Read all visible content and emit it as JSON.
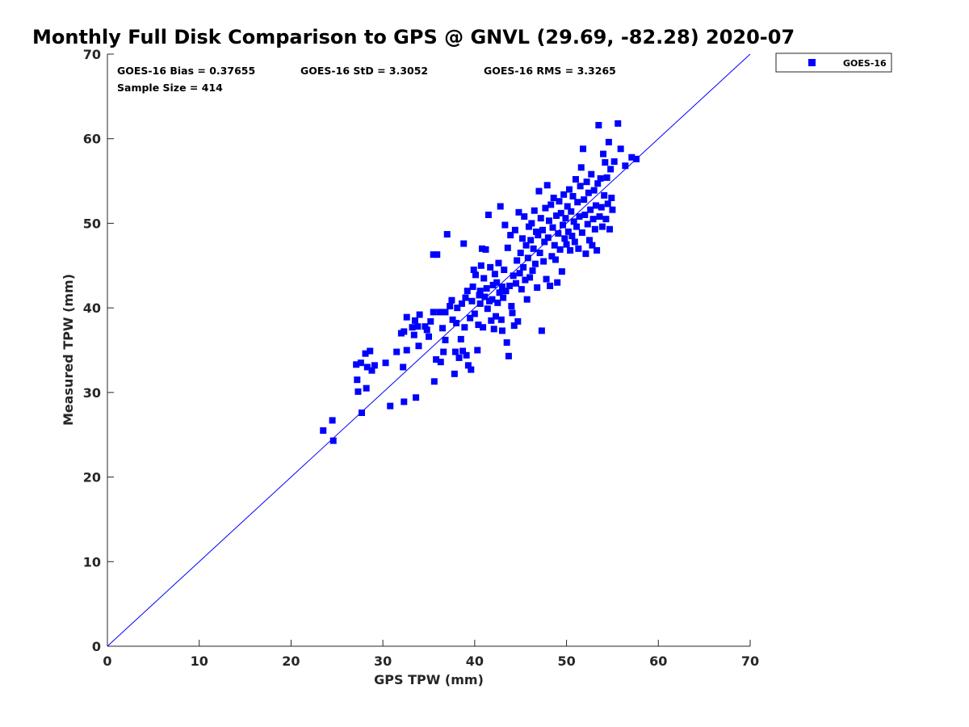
{
  "chart_data": {
    "type": "scatter",
    "title": "Monthly Full Disk Comparison to GPS @ GNVL (29.69, -82.28) 2020-07",
    "xlabel": "GPS TPW (mm)",
    "ylabel": "Measured TPW (mm)",
    "xlim": [
      0,
      70
    ],
    "ylim": [
      0,
      70
    ],
    "xticks": [
      "0",
      "10",
      "20",
      "30",
      "40",
      "50",
      "60",
      "70"
    ],
    "yticks": [
      "0",
      "10",
      "20",
      "30",
      "40",
      "50",
      "60",
      "70"
    ],
    "grid": false,
    "legend_position": "outside-top-right",
    "reference_line": {
      "from": [
        0,
        0
      ],
      "to": [
        70,
        70
      ],
      "color": "#0000ff"
    },
    "stats": {
      "bias": "GOES-16 Bias = 0.37655",
      "std": "GOES-16 StD = 3.3052",
      "rms": "GOES-16 RMS = 3.3265",
      "sample": "Sample Size = 414"
    },
    "series": [
      {
        "name": "GOES-16",
        "color": "#0000ff",
        "marker": "square",
        "points": [
          [
            23.5,
            25.5
          ],
          [
            24.5,
            26.7
          ],
          [
            24.6,
            24.3
          ],
          [
            27.7,
            27.6
          ],
          [
            27.3,
            30.1
          ],
          [
            27.2,
            31.5
          ],
          [
            27.1,
            33.3
          ],
          [
            27.6,
            33.5
          ],
          [
            28.1,
            34.6
          ],
          [
            28.6,
            34.9
          ],
          [
            28.3,
            33.0
          ],
          [
            28.8,
            32.6
          ],
          [
            29.1,
            33.2
          ],
          [
            28.2,
            30.5
          ],
          [
            30.3,
            33.5
          ],
          [
            31.5,
            34.8
          ],
          [
            30.8,
            28.4
          ],
          [
            32.3,
            28.9
          ],
          [
            33.6,
            29.4
          ],
          [
            32.2,
            33.0
          ],
          [
            32.6,
            35.0
          ],
          [
            32.0,
            37.0
          ],
          [
            32.3,
            37.2
          ],
          [
            32.6,
            38.9
          ],
          [
            33.2,
            37.7
          ],
          [
            33.4,
            36.8
          ],
          [
            33.5,
            38.5
          ],
          [
            33.8,
            37.8
          ],
          [
            33.9,
            35.5
          ],
          [
            34.0,
            39.2
          ],
          [
            34.6,
            37.8
          ],
          [
            34.8,
            37.4
          ],
          [
            35.0,
            36.6
          ],
          [
            35.2,
            38.4
          ],
          [
            35.5,
            39.5
          ],
          [
            35.5,
            46.3
          ],
          [
            35.9,
            46.3
          ],
          [
            35.8,
            33.9
          ],
          [
            35.6,
            31.3
          ],
          [
            36.2,
            39.5
          ],
          [
            36.6,
            34.8
          ],
          [
            36.8,
            36.2
          ],
          [
            36.5,
            37.6
          ],
          [
            36.3,
            33.6
          ],
          [
            36.8,
            39.5
          ],
          [
            37.0,
            48.7
          ],
          [
            37.3,
            40.2
          ],
          [
            37.5,
            40.9
          ],
          [
            37.6,
            38.6
          ],
          [
            37.8,
            32.2
          ],
          [
            37.9,
            34.8
          ],
          [
            38.0,
            38.2
          ],
          [
            38.1,
            40.0
          ],
          [
            38.3,
            34.1
          ],
          [
            38.5,
            36.3
          ],
          [
            38.6,
            40.5
          ],
          [
            38.8,
            47.6
          ],
          [
            38.9,
            37.7
          ],
          [
            38.7,
            34.9
          ],
          [
            39.0,
            41.2
          ],
          [
            39.2,
            42.0
          ],
          [
            39.1,
            34.4
          ],
          [
            39.3,
            33.2
          ],
          [
            39.5,
            38.8
          ],
          [
            39.6,
            32.7
          ],
          [
            39.7,
            40.8
          ],
          [
            39.8,
            42.5
          ],
          [
            39.9,
            44.5
          ],
          [
            40.0,
            39.3
          ],
          [
            40.1,
            43.9
          ],
          [
            40.3,
            35.0
          ],
          [
            40.4,
            38.0
          ],
          [
            40.5,
            41.5
          ],
          [
            40.6,
            42.0
          ],
          [
            40.6,
            40.5
          ],
          [
            40.7,
            45.0
          ],
          [
            40.8,
            47.0
          ],
          [
            40.9,
            37.7
          ],
          [
            41.0,
            43.5
          ],
          [
            41.1,
            41.3
          ],
          [
            41.2,
            46.9
          ],
          [
            41.3,
            42.3
          ],
          [
            41.4,
            39.9
          ],
          [
            41.5,
            51.0
          ],
          [
            41.6,
            40.8
          ],
          [
            41.7,
            44.8
          ],
          [
            41.8,
            38.5
          ],
          [
            41.9,
            41.0
          ],
          [
            42.0,
            42.7
          ],
          [
            42.1,
            37.5
          ],
          [
            42.2,
            44.0
          ],
          [
            42.3,
            39.0
          ],
          [
            42.4,
            43.0
          ],
          [
            42.5,
            40.6
          ],
          [
            42.6,
            45.3
          ],
          [
            42.7,
            41.8
          ],
          [
            42.8,
            52.0
          ],
          [
            42.9,
            38.6
          ],
          [
            43.0,
            42.5
          ],
          [
            43.0,
            37.3
          ],
          [
            43.1,
            41.2
          ],
          [
            43.2,
            44.5
          ],
          [
            43.3,
            49.8
          ],
          [
            43.4,
            42.0
          ],
          [
            43.5,
            35.9
          ],
          [
            43.6,
            47.1
          ],
          [
            43.7,
            34.3
          ],
          [
            43.8,
            42.6
          ],
          [
            43.9,
            48.6
          ],
          [
            44.0,
            40.2
          ],
          [
            44.1,
            39.4
          ],
          [
            44.2,
            43.8
          ],
          [
            44.3,
            37.9
          ],
          [
            44.4,
            49.2
          ],
          [
            44.5,
            42.9
          ],
          [
            44.6,
            45.6
          ],
          [
            44.7,
            38.4
          ],
          [
            44.8,
            51.3
          ],
          [
            44.9,
            44.1
          ],
          [
            45.0,
            46.5
          ],
          [
            45.1,
            42.2
          ],
          [
            45.2,
            48.2
          ],
          [
            45.3,
            44.8
          ],
          [
            45.4,
            50.8
          ],
          [
            45.5,
            43.3
          ],
          [
            45.6,
            47.4
          ],
          [
            45.7,
            41.0
          ],
          [
            45.8,
            45.9
          ],
          [
            45.9,
            49.6
          ],
          [
            46.0,
            43.6
          ],
          [
            46.1,
            48.0
          ],
          [
            46.2,
            50.0
          ],
          [
            46.3,
            44.4
          ],
          [
            46.4,
            47.0
          ],
          [
            46.5,
            51.5
          ],
          [
            46.6,
            45.2
          ],
          [
            46.7,
            49.0
          ],
          [
            46.8,
            42.4
          ],
          [
            46.9,
            48.6
          ],
          [
            47.0,
            53.8
          ],
          [
            47.1,
            46.5
          ],
          [
            47.2,
            50.6
          ],
          [
            47.3,
            37.3
          ],
          [
            47.4,
            49.2
          ],
          [
            47.5,
            45.5
          ],
          [
            47.6,
            47.8
          ],
          [
            47.7,
            51.8
          ],
          [
            47.8,
            43.4
          ],
          [
            47.9,
            54.5
          ],
          [
            48.0,
            48.3
          ],
          [
            48.1,
            50.3
          ],
          [
            48.2,
            42.6
          ],
          [
            48.3,
            52.2
          ],
          [
            48.4,
            46.1
          ],
          [
            48.5,
            49.5
          ],
          [
            48.6,
            53.0
          ],
          [
            48.7,
            47.4
          ],
          [
            48.8,
            45.7
          ],
          [
            48.9,
            50.9
          ],
          [
            49.0,
            43.0
          ],
          [
            49.1,
            48.8
          ],
          [
            49.2,
            52.6
          ],
          [
            49.3,
            46.9
          ],
          [
            49.4,
            51.2
          ],
          [
            49.5,
            44.3
          ],
          [
            49.6,
            49.8
          ],
          [
            49.7,
            53.4
          ],
          [
            49.8,
            48.2
          ],
          [
            49.9,
            50.6
          ],
          [
            50.0,
            47.5
          ],
          [
            50.1,
            52.0
          ],
          [
            50.2,
            49.0
          ],
          [
            50.3,
            54.0
          ],
          [
            50.4,
            46.8
          ],
          [
            50.5,
            51.4
          ],
          [
            50.6,
            48.5
          ],
          [
            50.7,
            53.2
          ],
          [
            50.8,
            50.2
          ],
          [
            50.9,
            47.8
          ],
          [
            51.0,
            55.2
          ],
          [
            51.1,
            49.6
          ],
          [
            51.2,
            52.5
          ],
          [
            51.3,
            47.0
          ],
          [
            51.4,
            50.8
          ],
          [
            51.5,
            54.4
          ],
          [
            51.6,
            56.6
          ],
          [
            51.7,
            48.9
          ],
          [
            51.8,
            58.8
          ],
          [
            51.9,
            52.8
          ],
          [
            52.0,
            51.0
          ],
          [
            52.1,
            46.4
          ],
          [
            52.2,
            54.9
          ],
          [
            52.3,
            49.9
          ],
          [
            52.4,
            53.6
          ],
          [
            52.5,
            48.0
          ],
          [
            52.6,
            51.6
          ],
          [
            52.7,
            55.8
          ],
          [
            52.8,
            47.4
          ],
          [
            52.9,
            50.5
          ],
          [
            53.0,
            53.9
          ],
          [
            53.1,
            49.3
          ],
          [
            53.2,
            52.1
          ],
          [
            53.3,
            46.8
          ],
          [
            53.4,
            54.7
          ],
          [
            53.5,
            61.6
          ],
          [
            53.6,
            50.8
          ],
          [
            53.7,
            55.3
          ],
          [
            53.8,
            51.9
          ],
          [
            53.9,
            49.6
          ],
          [
            54.0,
            58.2
          ],
          [
            54.1,
            53.3
          ],
          [
            54.2,
            57.2
          ],
          [
            54.3,
            50.5
          ],
          [
            54.4,
            55.4
          ],
          [
            54.5,
            52.3
          ],
          [
            54.6,
            59.6
          ],
          [
            54.7,
            49.3
          ],
          [
            54.8,
            56.4
          ],
          [
            54.9,
            53.0
          ],
          [
            55.0,
            51.6
          ],
          [
            55.2,
            57.3
          ],
          [
            55.6,
            61.8
          ],
          [
            55.9,
            58.8
          ],
          [
            56.4,
            56.8
          ],
          [
            57.1,
            57.8
          ],
          [
            57.6,
            57.6
          ]
        ]
      }
    ]
  }
}
